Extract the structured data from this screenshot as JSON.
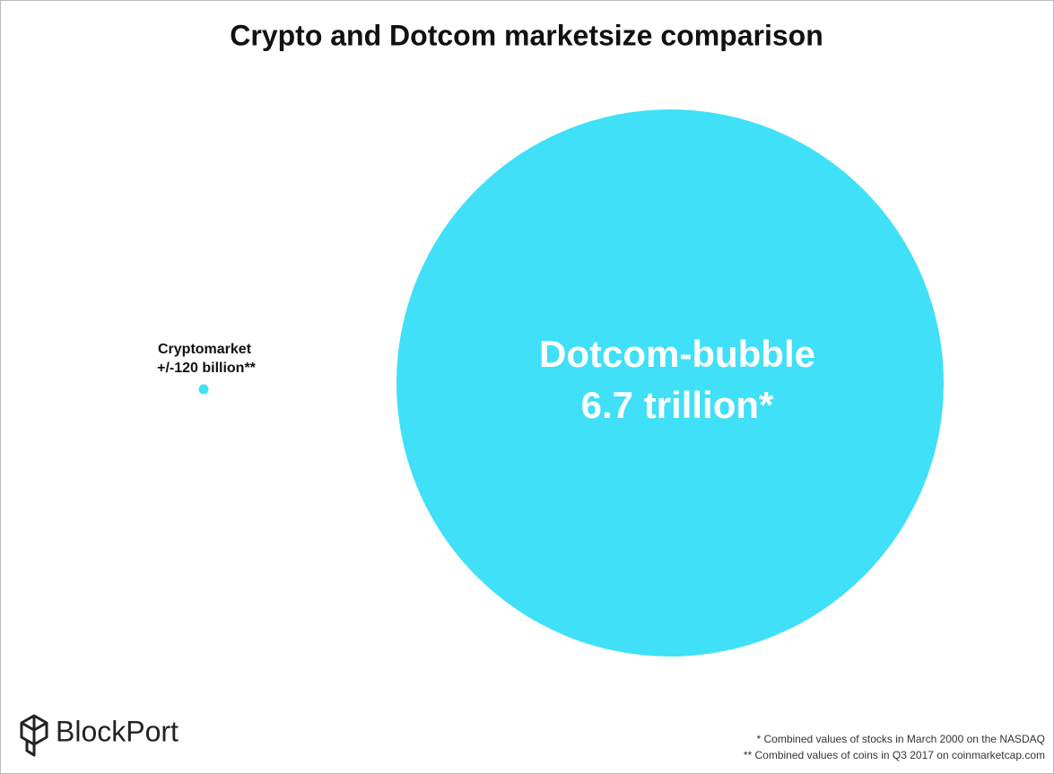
{
  "chart_data": {
    "type": "bubble",
    "title": "Crypto and Dotcom marketsize comparison",
    "categories": [
      "Cryptomarket",
      "Dotcom-bubble"
    ],
    "values": [
      120000000000,
      6700000000000
    ],
    "value_labels": [
      "+/-120 billion**",
      "6.7 trillion*"
    ],
    "color": "#3fe0f8",
    "notes": [
      "* Combined values of stocks in March 2000 on the NASDAQ",
      "** Combined values of coins in Q3 2017 on coinmarketcap.com"
    ],
    "brand": "BlockPort"
  }
}
